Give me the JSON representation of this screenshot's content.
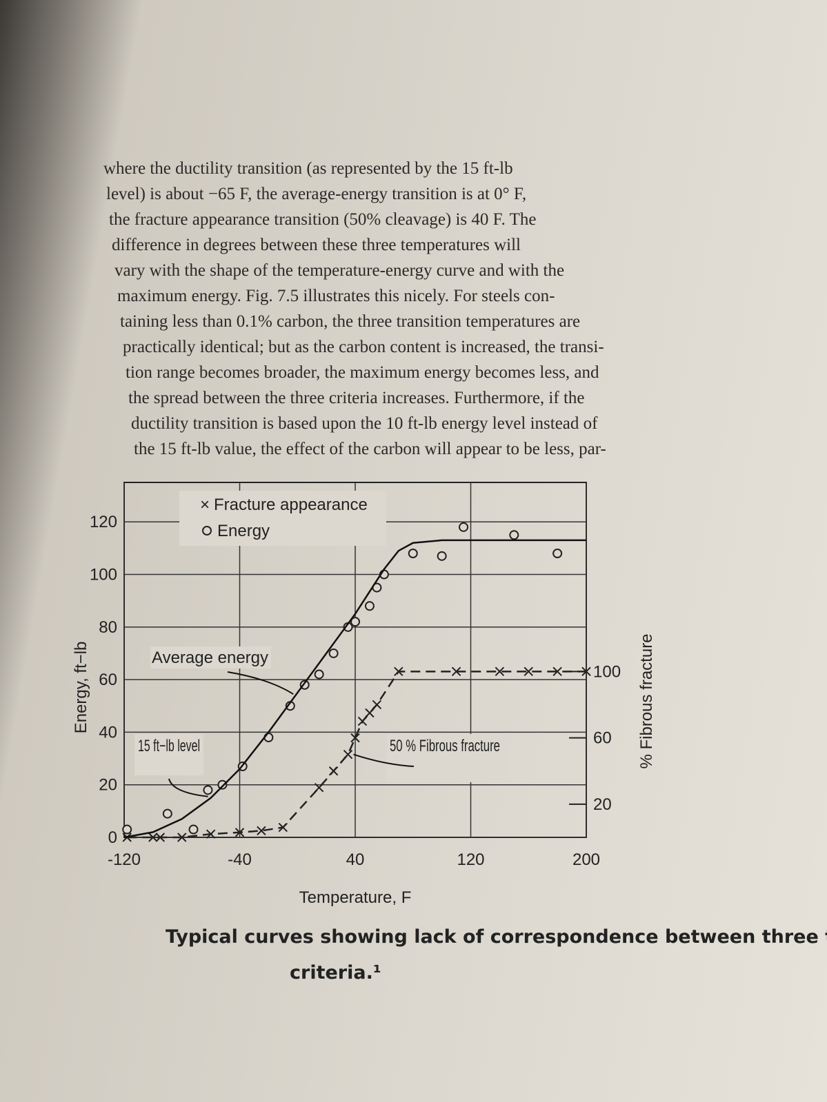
{
  "body_text": [
    "where the ductility transition (as represented by the 15 ft-lb",
    "level) is about −65 F, the average-energy transition is at 0° F,",
    "the fracture appearance transition (50% cleavage) is 40 F. The",
    "difference in degrees between these three temperatures will",
    "vary with the shape of the temperature-energy curve and with the",
    "maximum energy. Fig. 7.5 illustrates this nicely. For steels con-",
    "taining less than 0.1% carbon, the three transition temperatures are",
    "practically identical; but as the carbon content is increased, the transi-",
    "tion range becomes broader, the maximum energy becomes less, and",
    "the spread between the three criteria increases. Furthermore, if the",
    "ductility transition is based upon the 10 ft-lb energy level instead of",
    "the 15 ft-lb value, the effect of the carbon will appear to be less, par-"
  ],
  "chart_data": {
    "type": "scatter",
    "x_label": "Temperature, F",
    "y_label": "Energy, ft−lb",
    "y2_label": "% Fibrous fracture",
    "xlim": [
      -120,
      200
    ],
    "xticks": [
      -120,
      -40,
      40,
      120,
      200
    ],
    "ylim": [
      0,
      135
    ],
    "yticks": [
      0,
      20,
      40,
      60,
      80,
      100,
      120
    ],
    "y2lim": [
      0,
      214
    ],
    "y2ticks": [
      20,
      60,
      100
    ],
    "grid": true,
    "series": [
      {
        "name": "Fracture appearance",
        "marker": "x",
        "line": "dashed",
        "axis": "y2",
        "color": "#222",
        "x": [
          -118,
          -100,
          -95,
          -80,
          -60,
          -40,
          -25,
          -10,
          15,
          25,
          35,
          40,
          45,
          50,
          55,
          70,
          110,
          140,
          160,
          180,
          200
        ],
        "values": [
          0,
          0,
          0,
          0,
          2,
          3,
          4,
          6,
          30,
          40,
          50,
          60,
          70,
          75,
          80,
          100,
          100,
          100,
          100,
          100,
          100
        ]
      },
      {
        "name": "Energy",
        "marker": "o",
        "color": "#222",
        "x": [
          -118,
          -90,
          -72,
          -62,
          -52,
          -38,
          -20,
          -5,
          5,
          15,
          25,
          35,
          40,
          50,
          55,
          60,
          80,
          100,
          115,
          150,
          180
        ],
        "values": [
          3,
          9,
          3,
          18,
          20,
          27,
          38,
          50,
          58,
          62,
          70,
          80,
          82,
          88,
          95,
          100,
          108,
          107,
          118,
          115,
          108
        ]
      },
      {
        "name": "Average energy",
        "line": "solid",
        "color": "#111",
        "x": [
          -120,
          -100,
          -80,
          -60,
          -40,
          -20,
          0,
          20,
          40,
          60,
          70,
          80,
          100,
          120,
          160,
          200
        ],
        "values": [
          0,
          2,
          7,
          15,
          26,
          40,
          55,
          70,
          85,
          102,
          109,
          112,
          113,
          113,
          113,
          113
        ]
      }
    ],
    "annotations": [
      "15 ft−lb level",
      "50 % Fibrous fracture"
    ]
  },
  "caption": [
    "Typical curves showing lack of correspondence between three transition temperatu",
    "criteria.¹"
  ]
}
